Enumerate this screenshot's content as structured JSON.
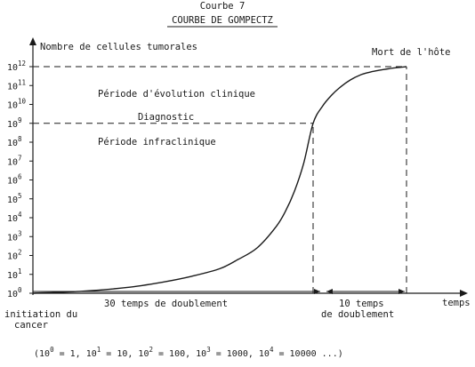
{
  "header": {
    "figure_number": "Courbe 7",
    "title": "COURBE DE GOMPECTZ"
  },
  "colors": {
    "ink": "#1a1a1a",
    "paper": "#ffffff"
  },
  "chart_data": {
    "type": "line",
    "title": "COURBE DE GOMPECTZ",
    "ylabel": "Nombre de cellules tumorales",
    "xlabel": "temps",
    "y_scale": "log10",
    "ylim": [
      1,
      1000000000000
    ],
    "xlim": [
      0,
      40
    ],
    "x_unit": "temps de doublement",
    "y_ticks": [
      {
        "base": "10",
        "exp": "0"
      },
      {
        "base": "10",
        "exp": "1"
      },
      {
        "base": "10",
        "exp": "2"
      },
      {
        "base": "10",
        "exp": "3"
      },
      {
        "base": "10",
        "exp": "4"
      },
      {
        "base": "10",
        "exp": "5"
      },
      {
        "base": "10",
        "exp": "6"
      },
      {
        "base": "10",
        "exp": "7"
      },
      {
        "base": "10",
        "exp": "8"
      },
      {
        "base": "10",
        "exp": "9"
      },
      {
        "base": "10",
        "exp": "10"
      },
      {
        "base": "10",
        "exp": "11"
      },
      {
        "base": "10",
        "exp": "12"
      }
    ],
    "series": [
      {
        "x": [
          0,
          5,
          10,
          14,
          17,
          20,
          22,
          24,
          26,
          27,
          28,
          29,
          30,
          31,
          32,
          33,
          34,
          35,
          36,
          37,
          38,
          39,
          40
        ],
        "log10_y": [
          0.0,
          0.1,
          0.3,
          0.6,
          0.9,
          1.3,
          1.8,
          2.4,
          3.5,
          4.3,
          5.4,
          6.9,
          9.0,
          9.9,
          10.5,
          10.95,
          11.3,
          11.55,
          11.7,
          11.8,
          11.88,
          11.95,
          12.0
        ]
      }
    ],
    "reference_lines": [
      {
        "kind": "horizontal",
        "log10_y": 12,
        "x_from": 0,
        "x_to": 40,
        "style": "dashed"
      },
      {
        "kind": "horizontal",
        "log10_y": 9,
        "x_from": 0,
        "x_to": 30,
        "style": "dashed"
      },
      {
        "kind": "vertical",
        "x": 30,
        "log10_y_from": 0,
        "log10_y_to": 9,
        "style": "dashed"
      },
      {
        "kind": "vertical",
        "x": 40,
        "log10_y_from": 0,
        "log10_y_to": 12,
        "style": "dashed"
      }
    ],
    "spans": [
      {
        "x_from": 0,
        "x_to": 30,
        "label": "30 temps de doublement"
      },
      {
        "x_from": 30,
        "x_to": 40,
        "label_line1": "10 temps",
        "label_line2": "de  doublement"
      }
    ],
    "annotations": {
      "death": "Mort de l'hôte",
      "clinical": "Période d'évolution clinique",
      "diagnosis": "Diagnostic",
      "preclinical": "Période infraclinique",
      "start_line1": "initiation du",
      "start_line2": "cancer"
    },
    "grid": false,
    "legend": "none"
  },
  "footnote": {
    "open": "(",
    "items": [
      {
        "base": "10",
        "exp": "0",
        "rest": " = 1,"
      },
      {
        "base": " 10",
        "exp": "1",
        "rest": " = 10,"
      },
      {
        "base": " 10",
        "exp": "2",
        "rest": " = 100,"
      },
      {
        "base": " 10",
        "exp": "3",
        "rest": " = 1000,"
      },
      {
        "base": " 10",
        "exp": "4",
        "rest": " = 10000 ...)"
      }
    ]
  }
}
